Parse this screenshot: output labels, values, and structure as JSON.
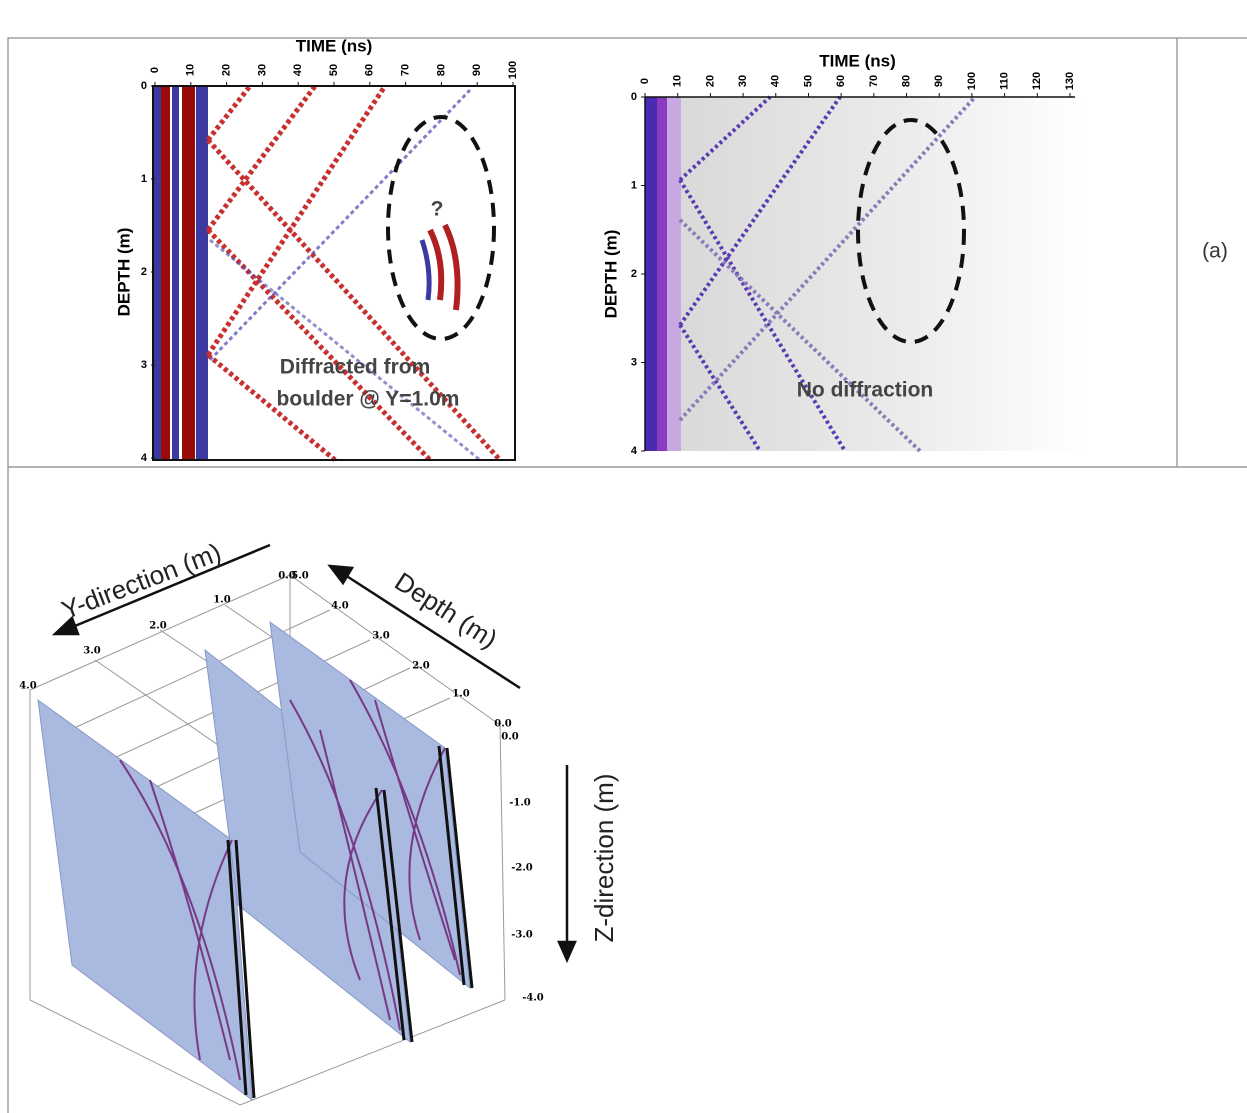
{
  "panels": [
    {
      "x_label": "TIME (ns)",
      "y_label": "DEPTH (m)",
      "xticks": [
        0,
        10,
        20,
        30,
        40,
        50,
        60,
        70,
        80,
        90,
        100
      ],
      "yticks": [
        0,
        1,
        2,
        3,
        4
      ],
      "marker": "?",
      "annotation": [
        "Diffracted from",
        "boulder @ Y=1.0m"
      ]
    },
    {
      "x_label": "TIME (ns)",
      "y_label": "DEPTH (m)",
      "xticks": [
        0,
        10,
        20,
        30,
        40,
        50,
        60,
        70,
        80,
        90,
        100,
        110,
        120,
        130
      ],
      "yticks": [
        0,
        1,
        2,
        3,
        4
      ],
      "annotation": [
        "No diffraction"
      ]
    }
  ],
  "panel_label": "(a)",
  "view3d": {
    "y_label": "Y-direction (m)",
    "depth_label": "Depth (m)",
    "z_label": "Z-direction (m)",
    "y_ticks": [
      "4.0",
      "3.0",
      "2.0",
      "1.0",
      "0.0"
    ],
    "depth_ticks": [
      "5.0",
      "4.0",
      "3.0",
      "2.0",
      "1.0",
      "0.0"
    ],
    "z_ticks": [
      "0.0",
      "-1.0",
      "-2.0",
      "-3.0",
      "-4.0"
    ]
  }
}
